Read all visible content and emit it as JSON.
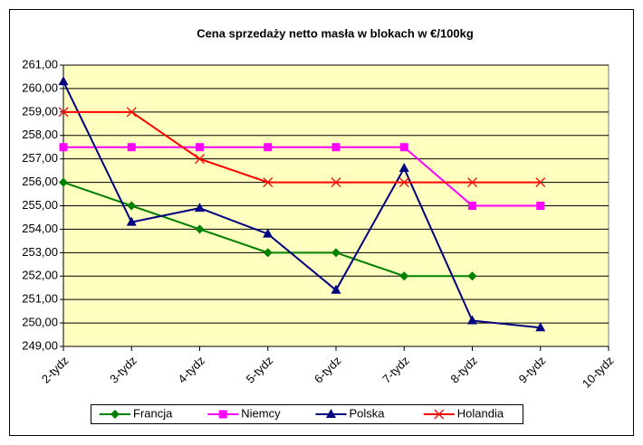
{
  "chart_data": {
    "type": "line",
    "title": "Cena sprzedaży netto masła w blokach w €/100kg",
    "categories": [
      "2-tydz",
      "3-tydz",
      "4-tydz",
      "5-tydz",
      "6-tydz",
      "7-tydz",
      "8-tydz",
      "9-tydz",
      "10-tydz"
    ],
    "series": [
      {
        "name": "Francja",
        "color": "#008000",
        "marker": "diamond",
        "values": [
          256,
          255,
          254,
          253,
          253,
          252,
          252,
          null,
          null
        ]
      },
      {
        "name": "Niemcy",
        "color": "#ff00ff",
        "marker": "square",
        "values": [
          257.5,
          257.5,
          257.5,
          257.5,
          257.5,
          257.5,
          255,
          255,
          null
        ]
      },
      {
        "name": "Polska",
        "color": "#000080",
        "marker": "triangle",
        "values": [
          260.3,
          254.3,
          254.9,
          253.8,
          251.4,
          256.6,
          250.1,
          249.8,
          null
        ]
      },
      {
        "name": "Holandia",
        "color": "#ff0000",
        "marker": "x",
        "values": [
          259,
          259,
          257,
          256,
          256,
          256,
          256,
          256,
          null
        ]
      }
    ],
    "ylim": [
      249,
      261
    ],
    "yticks": [
      {
        "value": 249,
        "label": "249,00"
      },
      {
        "value": 250,
        "label": "250,00"
      },
      {
        "value": 251,
        "label": "251,00"
      },
      {
        "value": 252,
        "label": "252,00"
      },
      {
        "value": 253,
        "label": "253,00"
      },
      {
        "value": 254,
        "label": "254,00"
      },
      {
        "value": 255,
        "label": "255,00"
      },
      {
        "value": 256,
        "label": "256,00"
      },
      {
        "value": 257,
        "label": "257,00"
      },
      {
        "value": 258,
        "label": "258,00"
      },
      {
        "value": 259,
        "label": "259,00"
      },
      {
        "value": 260,
        "label": "260,00"
      },
      {
        "value": 261,
        "label": "261,00"
      }
    ],
    "grid": true,
    "plot_background": "#ffffc0",
    "legend": "bottom"
  }
}
